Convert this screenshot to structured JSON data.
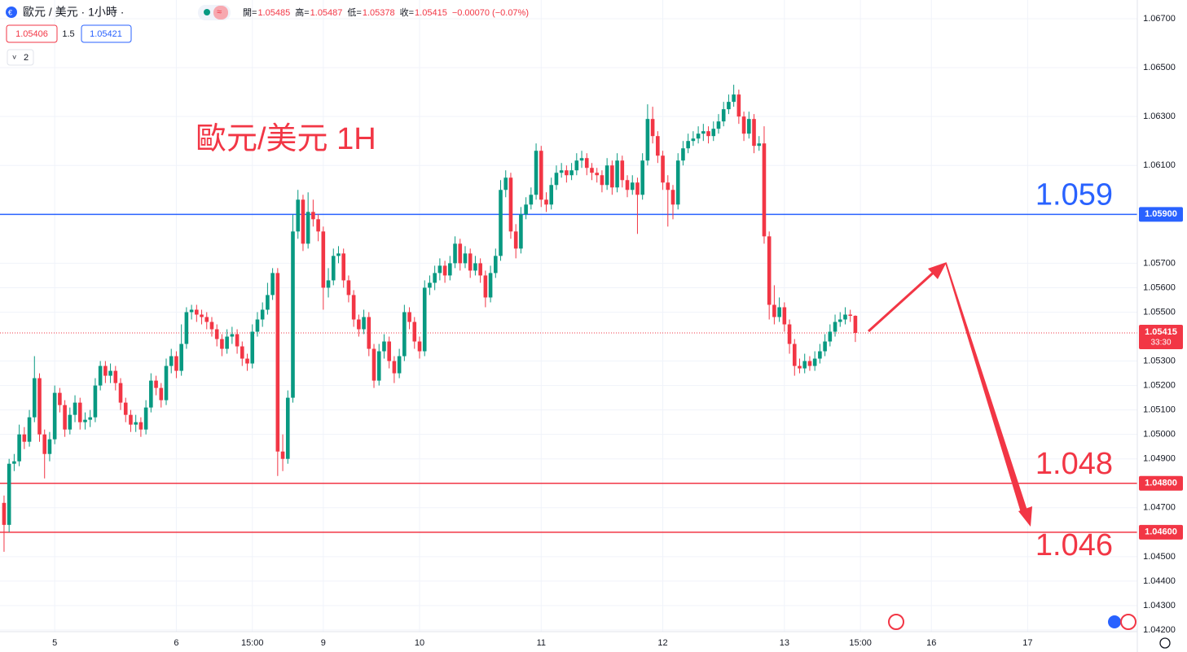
{
  "header": {
    "symbol": "歐元 / 美元 · 1小時 ·",
    "ohlc_labels": [
      "開=",
      "高=",
      "低=",
      "收="
    ],
    "change_label": "−0.00070 (−0.07%)",
    "bid": 1.05406,
    "spread": 1.5,
    "ask": 1.05421,
    "indicators": 2
  },
  "chart_data": {
    "type": "candlestick",
    "title": "歐元/美元 1H",
    "up_color": "#089981",
    "down_color": "#f23645",
    "grid": true,
    "categories": [
      null,
      null,
      null,
      null,
      null,
      null,
      null,
      null,
      null,
      null,
      "5",
      null,
      null,
      null,
      null,
      null,
      null,
      null,
      null,
      null,
      null,
      null,
      null,
      null,
      null,
      null,
      null,
      null,
      null,
      null,
      null,
      null,
      null,
      null,
      "6",
      null,
      null,
      null,
      null,
      null,
      null,
      null,
      null,
      null,
      null,
      null,
      null,
      null,
      null,
      "15:00",
      null,
      null,
      null,
      null,
      null,
      null,
      null,
      null,
      null,
      null,
      null,
      null,
      null,
      "9",
      null,
      null,
      null,
      null,
      null,
      null,
      null,
      null,
      null,
      null,
      null,
      null,
      null,
      null,
      null,
      null,
      null,
      null,
      "10",
      null,
      null,
      null,
      null,
      null,
      null,
      null,
      null,
      null,
      null,
      null,
      null,
      null,
      null,
      null,
      null,
      null,
      null,
      null,
      null,
      null,
      null,
      null,
      "11",
      null,
      null,
      null,
      null,
      null,
      null,
      null,
      null,
      null,
      null,
      null,
      null,
      null,
      null,
      null,
      null,
      null,
      null,
      null,
      null,
      null,
      null,
      null,
      "12",
      null,
      null,
      null,
      null,
      null,
      null,
      null,
      null,
      null,
      null,
      null,
      null,
      null,
      null,
      null,
      null,
      null,
      null,
      null,
      null,
      null,
      null,
      null,
      "13",
      null,
      null,
      null,
      null,
      null,
      null,
      null,
      null,
      null,
      null,
      null,
      null,
      null,
      null,
      "15:00",
      null,
      null,
      null,
      null,
      null,
      null,
      null,
      null,
      null,
      null,
      null,
      null,
      null,
      "16",
      null,
      null,
      null,
      null,
      null,
      null,
      null,
      null,
      null,
      null,
      null,
      null,
      null,
      null,
      null,
      null,
      null,
      null,
      "17"
    ],
    "open": [
      1.0472,
      1.0463,
      1.0488,
      1.0489,
      1.05,
      1.0497,
      1.0507,
      1.0523,
      1.05,
      1.0492,
      1.0498,
      1.0517,
      1.0512,
      1.0502,
      1.0508,
      1.0513,
      1.0505,
      1.0506,
      1.0507,
      1.052,
      1.0528,
      1.0524,
      1.0526,
      1.0521,
      1.0513,
      1.0508,
      1.0504,
      1.0505,
      1.0502,
      1.0511,
      1.0522,
      1.0519,
      1.0514,
      1.0528,
      1.0532,
      1.0526,
      1.0537,
      1.055,
      1.0551,
      1.0549,
      1.0548,
      1.0546,
      1.0543,
      1.0539,
      1.0535,
      1.054,
      1.0541,
      1.0536,
      1.0531,
      1.0529,
      1.0542,
      1.0547,
      1.0551,
      1.0557,
      1.0566,
      1.0493,
      1.049,
      1.0515,
      1.0583,
      1.0596,
      1.0578,
      1.0591,
      1.0588,
      1.0583,
      1.056,
      1.0563,
      1.0573,
      1.0574,
      1.0563,
      1.0557,
      1.0547,
      1.0543,
      1.0548,
      1.0535,
      1.0522,
      1.0534,
      1.0538,
      1.053,
      1.0525,
      1.0532,
      1.055,
      1.0546,
      1.0538,
      1.0534,
      1.056,
      1.0562,
      1.0566,
      1.0569,
      1.0565,
      1.057,
      1.0578,
      1.057,
      1.0574,
      1.0567,
      1.057,
      1.0565,
      1.0556,
      1.0566,
      1.0573,
      1.06,
      1.0605,
      1.0583,
      1.0576,
      1.059,
      1.0594,
      1.0598,
      1.0616,
      1.0596,
      1.0594,
      1.0602,
      1.0607,
      1.0608,
      1.0606,
      1.0608,
      1.0612,
      1.0613,
      1.0609,
      1.0607,
      1.0606,
      1.0602,
      1.061,
      1.0601,
      1.0612,
      1.0604,
      1.06,
      1.0603,
      1.0598,
      1.0612,
      1.0629,
      1.0622,
      1.0614,
      1.0603,
      1.06,
      1.0594,
      1.0612,
      1.0617,
      1.062,
      1.0621,
      1.0623,
      1.0624,
      1.0622,
      1.0625,
      1.0628,
      1.0633,
      1.0636,
      1.0639,
      1.063,
      1.0623,
      1.0629,
      1.0618,
      1.0619,
      1.0581,
      1.0553,
      1.0548,
      1.0552,
      1.0545,
      1.0537,
      1.0528,
      1.0527,
      1.053,
      1.0528,
      1.0531,
      1.0534,
      1.0538,
      1.0542,
      1.0546,
      1.0547,
      1.0549,
      1.05485,
      null,
      null,
      null,
      null,
      null,
      null,
      null,
      null,
      null,
      null,
      null,
      null,
      null,
      null,
      null,
      null,
      null,
      null,
      null,
      null,
      null,
      null,
      null,
      null,
      null,
      null,
      null,
      null,
      null,
      null,
      null,
      null,
      null,
      null
    ],
    "high": [
      1.0475,
      1.049,
      1.0492,
      1.0504,
      1.0503,
      1.051,
      1.0532,
      1.0525,
      1.0502,
      1.0501,
      1.052,
      1.0519,
      1.0514,
      1.0511,
      1.0516,
      1.0515,
      1.0509,
      1.051,
      1.0523,
      1.053,
      1.053,
      1.0529,
      1.0528,
      1.0523,
      1.0515,
      1.051,
      1.0508,
      1.0507,
      1.0514,
      1.0525,
      1.0524,
      1.0521,
      1.0531,
      1.0535,
      1.0534,
      1.0545,
      1.0552,
      1.0553,
      1.0553,
      1.0551,
      1.055,
      1.0548,
      1.0545,
      1.0541,
      1.0543,
      1.0544,
      1.0543,
      1.0538,
      1.0533,
      1.0545,
      1.055,
      1.0554,
      1.0562,
      1.0568,
      1.0568,
      1.05,
      1.0518,
      1.059,
      1.06,
      1.0598,
      1.0599,
      1.0596,
      1.059,
      1.0585,
      1.0568,
      1.0576,
      1.0577,
      1.0576,
      1.0565,
      1.0559,
      1.0549,
      1.0551,
      1.055,
      1.0537,
      1.0537,
      1.0541,
      1.054,
      1.0532,
      1.0535,
      1.0553,
      1.0552,
      1.0548,
      1.054,
      1.0563,
      1.0565,
      1.0569,
      1.0572,
      1.0571,
      1.0573,
      1.0581,
      1.058,
      1.0577,
      1.0576,
      1.0573,
      1.0572,
      1.0567,
      1.0569,
      1.0576,
      1.0604,
      1.0608,
      1.0607,
      1.0586,
      1.0593,
      1.0597,
      1.0601,
      1.0619,
      1.0618,
      1.0599,
      1.0605,
      1.061,
      1.0611,
      1.061,
      1.0611,
      1.0615,
      1.0616,
      1.0615,
      1.0611,
      1.0609,
      1.0608,
      1.0613,
      1.0612,
      1.0615,
      1.0614,
      1.0606,
      1.0606,
      1.0605,
      1.0615,
      1.0635,
      1.0634,
      1.0624,
      1.0616,
      1.0606,
      1.0602,
      1.0615,
      1.062,
      1.0623,
      1.0624,
      1.0626,
      1.0627,
      1.0626,
      1.0628,
      1.0631,
      1.0636,
      1.0639,
      1.0643,
      1.0641,
      1.0632,
      1.0632,
      1.0631,
      1.0622,
      1.0626,
      1.0583,
      1.0561,
      1.0556,
      1.0554,
      1.0547,
      1.0539,
      1.0531,
      1.0533,
      1.0532,
      1.0534,
      1.0537,
      1.0541,
      1.0545,
      1.0549,
      1.055,
      1.0552,
      1.0551,
      1.05487,
      null,
      null,
      null,
      null,
      null,
      null,
      null,
      null,
      null,
      null,
      null,
      null,
      null,
      null,
      null,
      null,
      null,
      null,
      null,
      null,
      null,
      null,
      null,
      null,
      null,
      null,
      null,
      null,
      null,
      null,
      null,
      null,
      null,
      null
    ],
    "low": [
      1.0452,
      1.046,
      1.0485,
      1.0487,
      1.0494,
      1.0495,
      1.0505,
      1.0497,
      1.0482,
      1.0489,
      1.0496,
      1.0509,
      1.0499,
      1.05,
      1.0505,
      1.0502,
      1.0502,
      1.0503,
      1.0505,
      1.0518,
      1.0521,
      1.0521,
      1.0518,
      1.051,
      1.0505,
      1.0501,
      1.0501,
      1.0499,
      1.05,
      1.0509,
      1.0516,
      1.0511,
      1.0512,
      1.0525,
      1.0523,
      1.0524,
      1.0535,
      1.0547,
      1.0546,
      1.0545,
      1.0543,
      1.054,
      1.0536,
      1.0532,
      1.0533,
      1.0537,
      1.0533,
      1.0528,
      1.0526,
      1.0527,
      1.054,
      1.0544,
      1.0549,
      1.0555,
      1.0483,
      1.0485,
      1.0488,
      1.0513,
      1.058,
      1.0575,
      1.0576,
      1.0585,
      1.0579,
      1.0551,
      1.0556,
      1.0561,
      1.057,
      1.056,
      1.0554,
      1.0544,
      1.054,
      1.0541,
      1.0532,
      1.0519,
      1.052,
      1.0531,
      1.0527,
      1.0521,
      1.0523,
      1.053,
      1.0543,
      1.0535,
      1.0531,
      1.0532,
      1.0557,
      1.0559,
      1.0563,
      1.0562,
      1.0563,
      1.0568,
      1.0567,
      1.0568,
      1.0564,
      1.0565,
      1.0562,
      1.0552,
      1.0554,
      1.0564,
      1.0571,
      1.0597,
      1.058,
      1.0572,
      1.0574,
      1.0588,
      1.0592,
      1.0596,
      1.0593,
      1.0591,
      1.0592,
      1.06,
      1.0605,
      1.0603,
      1.0604,
      1.0606,
      1.0609,
      1.0606,
      1.0604,
      1.0603,
      1.0599,
      1.06,
      1.0598,
      1.0599,
      1.0601,
      1.0597,
      1.0598,
      1.0582,
      1.0596,
      1.061,
      1.0619,
      1.0611,
      1.06,
      1.0585,
      1.0588,
      1.0592,
      1.061,
      1.0615,
      1.0618,
      1.0619,
      1.062,
      1.0619,
      1.062,
      1.0623,
      1.0626,
      1.0631,
      1.0634,
      1.0627,
      1.062,
      1.0621,
      1.0615,
      1.0616,
      1.0578,
      1.0547,
      1.0545,
      1.0546,
      1.0542,
      1.0533,
      1.0524,
      1.0525,
      1.0525,
      1.0526,
      1.0526,
      1.0529,
      1.0532,
      1.0536,
      1.054,
      1.0544,
      1.0545,
      1.0546,
      1.05378,
      null,
      null,
      null,
      null,
      null,
      null,
      null,
      null,
      null,
      null,
      null,
      null,
      null,
      null,
      null,
      null,
      null,
      null,
      null,
      null,
      null,
      null,
      null,
      null,
      null,
      null,
      null,
      null,
      null,
      null,
      null,
      null,
      null,
      null
    ],
    "close": [
      1.0463,
      1.0488,
      1.0489,
      1.05,
      1.0497,
      1.0507,
      1.0523,
      1.05,
      1.0492,
      1.0498,
      1.0517,
      1.0512,
      1.0502,
      1.0508,
      1.0513,
      1.0505,
      1.0506,
      1.0507,
      1.052,
      1.0528,
      1.0524,
      1.0526,
      1.0521,
      1.0513,
      1.0508,
      1.0504,
      1.0505,
      1.0502,
      1.0511,
      1.0522,
      1.0519,
      1.0514,
      1.0528,
      1.0532,
      1.0526,
      1.0537,
      1.055,
      1.0551,
      1.0549,
      1.0548,
      1.0546,
      1.0543,
      1.0539,
      1.0535,
      1.054,
      1.0541,
      1.0536,
      1.0531,
      1.0529,
      1.0542,
      1.0547,
      1.0551,
      1.0557,
      1.0566,
      1.0493,
      1.049,
      1.0515,
      1.0583,
      1.0596,
      1.0578,
      1.0591,
      1.0588,
      1.0583,
      1.056,
      1.0563,
      1.0573,
      1.0574,
      1.0563,
      1.0557,
      1.0547,
      1.0543,
      1.0548,
      1.0535,
      1.0522,
      1.0534,
      1.0538,
      1.053,
      1.0525,
      1.0532,
      1.055,
      1.0546,
      1.0538,
      1.0534,
      1.056,
      1.0562,
      1.0566,
      1.0569,
      1.0565,
      1.057,
      1.0578,
      1.057,
      1.0574,
      1.0567,
      1.057,
      1.0565,
      1.0556,
      1.0566,
      1.0573,
      1.06,
      1.0605,
      1.0583,
      1.0576,
      1.059,
      1.0594,
      1.0598,
      1.0616,
      1.0596,
      1.0594,
      1.0602,
      1.0607,
      1.0608,
      1.0606,
      1.0608,
      1.0612,
      1.0613,
      1.0609,
      1.0607,
      1.0606,
      1.0602,
      1.061,
      1.0601,
      1.0612,
      1.0604,
      1.06,
      1.0603,
      1.0598,
      1.0612,
      1.0629,
      1.0622,
      1.0614,
      1.0603,
      1.06,
      1.0594,
      1.0612,
      1.0617,
      1.062,
      1.0621,
      1.0623,
      1.0624,
      1.0622,
      1.0625,
      1.0628,
      1.0633,
      1.0636,
      1.0639,
      1.063,
      1.0623,
      1.0629,
      1.0618,
      1.0619,
      1.0581,
      1.0553,
      1.0548,
      1.0552,
      1.0545,
      1.0537,
      1.0528,
      1.0527,
      1.053,
      1.0528,
      1.0531,
      1.0534,
      1.0538,
      1.0542,
      1.0546,
      1.0547,
      1.0549,
      1.05485,
      1.05415,
      null,
      null,
      null,
      null,
      null,
      null,
      null,
      null,
      null,
      null,
      null,
      null,
      null,
      null,
      null,
      null,
      null,
      null,
      null,
      null,
      null,
      null,
      null,
      null,
      null,
      null,
      null,
      null,
      null,
      null,
      null,
      null,
      null,
      null
    ],
    "ylim": [
      1.042,
      1.067
    ],
    "yticks": [
      {
        "value": 1.067,
        "label": "1.06700"
      },
      {
        "value": 1.065,
        "label": "1.06500"
      },
      {
        "value": 1.063,
        "label": "1.06300"
      },
      {
        "value": 1.061,
        "label": "1.06100"
      },
      {
        "value": 1.057,
        "label": "1.05700"
      },
      {
        "value": 1.056,
        "label": "1.05600"
      },
      {
        "value": 1.055,
        "label": "1.05500"
      },
      {
        "value": 1.053,
        "label": "1.05300"
      },
      {
        "value": 1.052,
        "label": "1.05200"
      },
      {
        "value": 1.051,
        "label": "1.05100"
      },
      {
        "value": 1.05,
        "label": "1.05000"
      },
      {
        "value": 1.049,
        "label": "1.04900"
      },
      {
        "value": 1.047,
        "label": "1.04700"
      },
      {
        "value": 1.045,
        "label": "1.04500"
      },
      {
        "value": 1.044,
        "label": "1.04400"
      },
      {
        "value": 1.043,
        "label": "1.04300"
      },
      {
        "value": 1.042,
        "label": "1.04200"
      }
    ],
    "levels": [
      {
        "value": 1.059,
        "tag": "1.05900",
        "color": "#2962ff"
      },
      {
        "value": 1.048,
        "tag": "1.04800",
        "color": "#f23645"
      },
      {
        "value": 1.046,
        "tag": "1.04600",
        "color": "#f23645"
      }
    ],
    "countdown": "33:30"
  }
}
